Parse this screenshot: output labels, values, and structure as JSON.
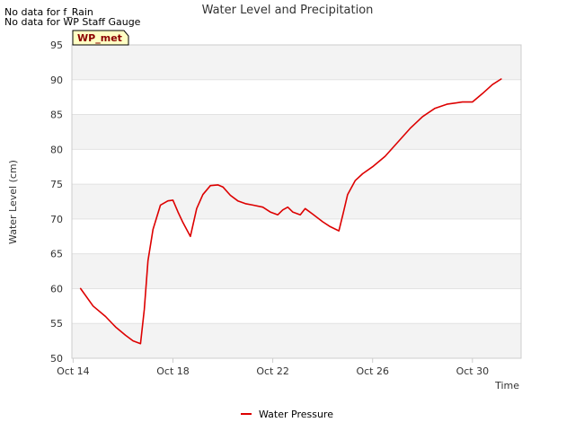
{
  "notes": [
    "No data for f_Rain",
    "No data for WP Staff Gauge"
  ],
  "badge": "WP_met",
  "chart_data": {
    "type": "line",
    "title": "Water Level and Precipitation",
    "xlabel": "Time",
    "ylabel": "Water Level (cm)",
    "ylim": [
      50,
      95
    ],
    "yticks": [
      50,
      55,
      60,
      65,
      70,
      75,
      80,
      85,
      90,
      95
    ],
    "xlim": [
      "Oct 13.95",
      "Oct 31.95"
    ],
    "xticks": [
      {
        "label": "Oct 14",
        "day": 14
      },
      {
        "label": "Oct 18",
        "day": 18
      },
      {
        "label": "Oct 22",
        "day": 22
      },
      {
        "label": "Oct 26",
        "day": 26
      },
      {
        "label": "Oct 30",
        "day": 30
      }
    ],
    "grid": "alternating-bands",
    "legend": "bottom-center",
    "series": [
      {
        "name": "Water Pressure",
        "color": "#dd0000",
        "x": [
          14.3,
          14.8,
          15.3,
          15.7,
          16.1,
          16.4,
          16.7,
          16.85,
          17.0,
          17.2,
          17.5,
          17.8,
          18.0,
          18.2,
          18.4,
          18.7,
          18.95,
          19.2,
          19.5,
          19.8,
          20.0,
          20.3,
          20.6,
          20.9,
          21.2,
          21.6,
          21.9,
          22.2,
          22.4,
          22.6,
          22.8,
          23.1,
          23.3,
          23.6,
          24.0,
          24.3,
          24.65,
          24.8,
          25.0,
          25.3,
          25.6,
          26.0,
          26.5,
          27.0,
          27.5,
          28.0,
          28.5,
          29.0,
          29.6,
          30.0,
          30.4,
          30.8,
          31.15
        ],
        "values": [
          60.0,
          57.5,
          56.0,
          54.5,
          53.3,
          52.5,
          52.1,
          57.0,
          64.0,
          68.5,
          72.0,
          72.6,
          72.7,
          71.0,
          69.5,
          67.5,
          71.5,
          73.5,
          74.8,
          74.9,
          74.6,
          73.4,
          72.6,
          72.2,
          72.0,
          71.7,
          71.0,
          70.6,
          71.3,
          71.7,
          71.0,
          70.6,
          71.5,
          70.7,
          69.6,
          68.9,
          68.3,
          70.5,
          73.5,
          75.5,
          76.5,
          77.5,
          79.0,
          81.0,
          83.0,
          84.7,
          85.9,
          86.5,
          86.8,
          86.8,
          88.0,
          89.3,
          90.1
        ]
      }
    ]
  }
}
